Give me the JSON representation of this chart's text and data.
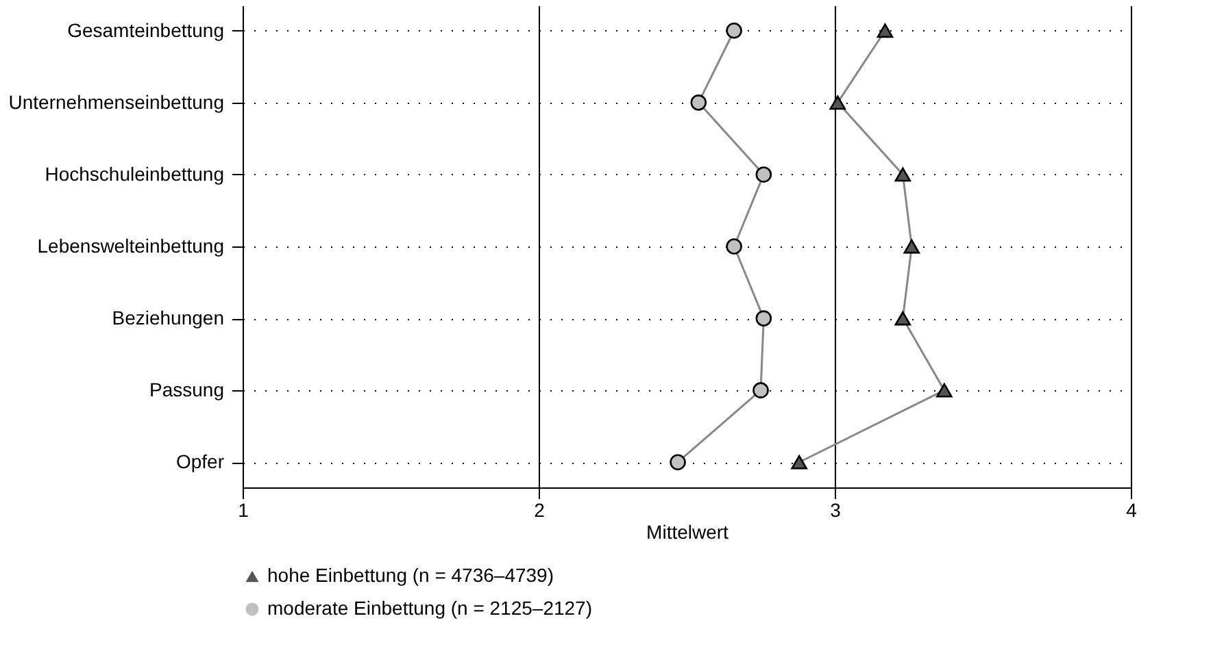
{
  "chart_data": {
    "type": "line",
    "xlabel": "Mittelwert",
    "categories": [
      "Gesamteinbettung",
      "Unternehmenseinbettung",
      "Hochschuleinbettung",
      "Lebenswelteinbettung",
      "Beziehungen",
      "Passung",
      "Opfer"
    ],
    "series": [
      {
        "name": "hohe Einbettung (n = 4736–4739)",
        "color": "#555555",
        "marker": "triangle",
        "values": [
          3.17,
          3.01,
          3.23,
          3.26,
          3.23,
          3.37,
          2.88
        ]
      },
      {
        "name": "moderate Einbettung (n = 2125–2127)",
        "color": "#c0c0c0",
        "marker": "circle",
        "values": [
          2.66,
          2.54,
          2.76,
          2.66,
          2.76,
          2.75,
          2.47
        ]
      }
    ],
    "orientation": "horizontal",
    "xlim": [
      1,
      4
    ],
    "xticks": [
      1,
      2,
      3,
      4
    ],
    "grid": true,
    "legend": "bottom",
    "line_style": "solid"
  }
}
